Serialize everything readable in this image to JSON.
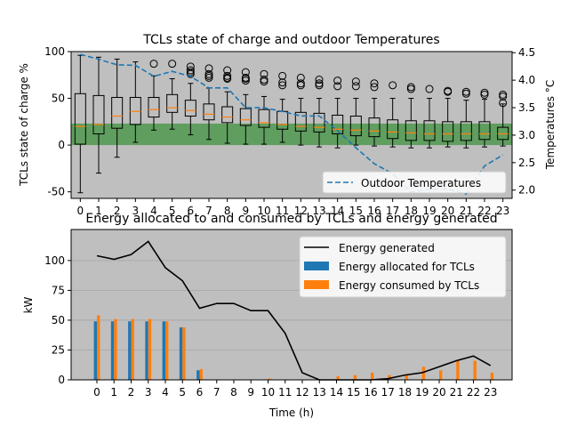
{
  "chart_data": [
    {
      "type": "box",
      "title": "TCLs state of charge and outdoor Temperatures",
      "ylabel": "TCLs state of charge %",
      "y2label": "Temperatures °C",
      "categories": [
        "0",
        "1",
        "2",
        "3",
        "4",
        "5",
        "6",
        "7",
        "8",
        "9",
        "10",
        "11",
        "12",
        "13",
        "14",
        "15",
        "16",
        "17",
        "18",
        "19",
        "20",
        "21",
        "22",
        "23"
      ],
      "ylim": [
        -57,
        100
      ],
      "y2lim": [
        1.85,
        4.52
      ],
      "yticks": [
        -50,
        0,
        50,
        100
      ],
      "y2ticks": [
        2.0,
        2.5,
        3.0,
        3.5,
        4.0,
        4.5
      ],
      "band": {
        "from": 0,
        "to": 23,
        "color": "#5f9e5f"
      },
      "boxes": [
        {
          "whislo": -51,
          "q1": 1,
          "med": 20,
          "q3": 55,
          "whishi": 96,
          "fliers": []
        },
        {
          "whislo": -30,
          "q1": 12,
          "med": 22,
          "q3": 53,
          "whishi": 94,
          "fliers": []
        },
        {
          "whislo": -13,
          "q1": 18,
          "med": 31,
          "q3": 51,
          "whishi": 92,
          "fliers": []
        },
        {
          "whislo": 3,
          "q1": 22,
          "med": 36,
          "q3": 51,
          "whishi": 89,
          "fliers": []
        },
        {
          "whislo": 16,
          "q1": 30,
          "med": 38,
          "q3": 51,
          "whishi": 74,
          "fliers": [
            87
          ]
        },
        {
          "whislo": 17,
          "q1": 35,
          "med": 40,
          "q3": 54,
          "whishi": 71,
          "fliers": [
            87
          ]
        },
        {
          "whislo": 11,
          "q1": 31,
          "med": 37,
          "q3": 48,
          "whishi": 66,
          "fliers": [
            84,
            80,
            78,
            76
          ]
        },
        {
          "whislo": 6,
          "q1": 27,
          "med": 33,
          "q3": 44,
          "whishi": 61,
          "fliers": [
            82,
            76,
            74,
            72
          ]
        },
        {
          "whislo": 2,
          "q1": 24,
          "med": 30,
          "q3": 41,
          "whishi": 57,
          "fliers": [
            80,
            74,
            72,
            71
          ]
        },
        {
          "whislo": 1,
          "q1": 21,
          "med": 27,
          "q3": 39,
          "whishi": 54,
          "fliers": [
            78,
            72,
            71,
            69
          ]
        },
        {
          "whislo": 1,
          "q1": 19,
          "med": 24,
          "q3": 38,
          "whishi": 52,
          "fliers": [
            76,
            70,
            68
          ]
        },
        {
          "whislo": 3,
          "q1": 17,
          "med": 22,
          "q3": 36,
          "whishi": 49,
          "fliers": [
            74,
            67,
            64
          ]
        },
        {
          "whislo": 0,
          "q1": 15,
          "med": 20,
          "q3": 35,
          "whishi": 50,
          "fliers": [
            72,
            66,
            64
          ]
        },
        {
          "whislo": -2,
          "q1": 14,
          "med": 19,
          "q3": 34,
          "whishi": 50,
          "fliers": [
            70,
            66,
            64
          ]
        },
        {
          "whislo": -3,
          "q1": 12,
          "med": 17,
          "q3": 32,
          "whishi": 50,
          "fliers": [
            69,
            63
          ]
        },
        {
          "whislo": 0,
          "q1": 10,
          "med": 16,
          "q3": 31,
          "whishi": 50,
          "fliers": [
            68,
            63
          ]
        },
        {
          "whislo": -1,
          "q1": 9,
          "med": 15,
          "q3": 29,
          "whishi": 50,
          "fliers": [
            66,
            62
          ]
        },
        {
          "whislo": -2,
          "q1": 7,
          "med": 14,
          "q3": 27,
          "whishi": 50,
          "fliers": [
            64
          ]
        },
        {
          "whislo": -3,
          "q1": 5,
          "med": 13,
          "q3": 26,
          "whishi": 50,
          "fliers": [
            62,
            60
          ]
        },
        {
          "whislo": -3,
          "q1": 5,
          "med": 12,
          "q3": 26,
          "whishi": 50,
          "fliers": [
            60
          ]
        },
        {
          "whislo": -2,
          "q1": 4,
          "med": 12,
          "q3": 25,
          "whishi": 50,
          "fliers": [
            58,
            57
          ]
        },
        {
          "whislo": -3,
          "q1": 5,
          "med": 12,
          "q3": 25,
          "whishi": 48,
          "fliers": [
            57,
            55
          ]
        },
        {
          "whislo": -2,
          "q1": 6,
          "med": 12,
          "q3": 25,
          "whishi": 49,
          "fliers": [
            56,
            54
          ]
        },
        {
          "whislo": -1,
          "q1": 6,
          "med": 12,
          "q3": 19,
          "whishi": 44,
          "fliers": [
            54,
            52,
            45
          ]
        }
      ],
      "series": [
        {
          "name": "Outdoor Temperatures",
          "axis": "right",
          "style": "dashed",
          "color": "#1f77b4",
          "values": [
            4.47,
            4.38,
            4.28,
            4.27,
            4.07,
            4.16,
            4.07,
            3.86,
            3.86,
            3.5,
            3.5,
            3.43,
            3.35,
            3.35,
            3.08,
            2.77,
            2.48,
            2.3,
            1.96,
            2.02,
            2.02,
            1.93,
            2.44,
            2.64
          ]
        }
      ],
      "legend_position": "lower-right"
    },
    {
      "type": "bar+line",
      "title": "Energy allocated to and consumed by TCLs and energy generated",
      "xlabel": "Time (h)",
      "ylabel": "kW",
      "categories": [
        "0",
        "1",
        "2",
        "3",
        "4",
        "5",
        "6",
        "7",
        "8",
        "9",
        "10",
        "11",
        "12",
        "13",
        "14",
        "15",
        "16",
        "17",
        "18",
        "19",
        "20",
        "21",
        "22",
        "23"
      ],
      "ylim": [
        0,
        126
      ],
      "yticks": [
        0,
        25,
        50,
        75,
        100
      ],
      "series": [
        {
          "name": "Energy generated",
          "kind": "line",
          "color": "#000000",
          "values": [
            104,
            101,
            105,
            116,
            94,
            83,
            60,
            64,
            64,
            58,
            58,
            39,
            6,
            0,
            0,
            0,
            0,
            1,
            4,
            6,
            11,
            16,
            20,
            12
          ]
        },
        {
          "name": "Energy allocated for TCLs",
          "kind": "bar",
          "color": "#1f77b4",
          "values": [
            49,
            49,
            49,
            49,
            49,
            44,
            8,
            0,
            0,
            0,
            0,
            0,
            0,
            0,
            0,
            0,
            0,
            0,
            0,
            0,
            0,
            0,
            0,
            0
          ]
        },
        {
          "name": "Energy consumed by TCLs",
          "kind": "bar",
          "color": "#ff7f0e",
          "values": [
            54,
            51,
            51,
            51,
            49,
            44,
            9,
            0,
            0,
            0,
            1,
            0,
            0,
            0,
            3,
            4,
            6,
            4,
            4,
            11,
            8,
            16,
            16,
            6
          ]
        }
      ],
      "legend_position": "upper-right"
    }
  ]
}
